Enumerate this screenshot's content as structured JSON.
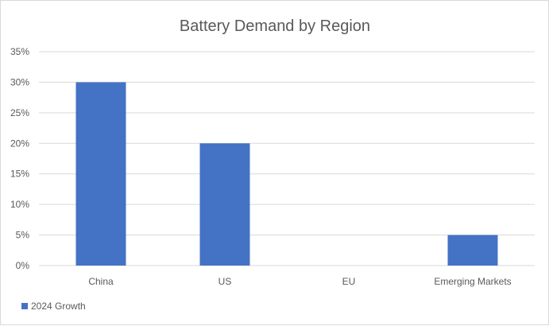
{
  "chart_data": {
    "type": "bar",
    "title": "Battery Demand by Region",
    "xlabel": "",
    "ylabel": "",
    "categories": [
      "China",
      "US",
      "EU",
      "Emerging Markets"
    ],
    "series": [
      {
        "name": "2024 Growth",
        "values": [
          30,
          20,
          0,
          5
        ],
        "color": "#4472C4"
      }
    ],
    "ylim": [
      0,
      35
    ],
    "yticks": [
      0,
      5,
      10,
      15,
      20,
      25,
      30,
      35
    ],
    "ytick_labels": [
      "0%",
      "5%",
      "10%",
      "15%",
      "20%",
      "25%",
      "30%",
      "35%"
    ],
    "grid": true,
    "legend_position": "bottom-left",
    "gridline_color": "#d9d9d9",
    "text_color": "#595959"
  }
}
